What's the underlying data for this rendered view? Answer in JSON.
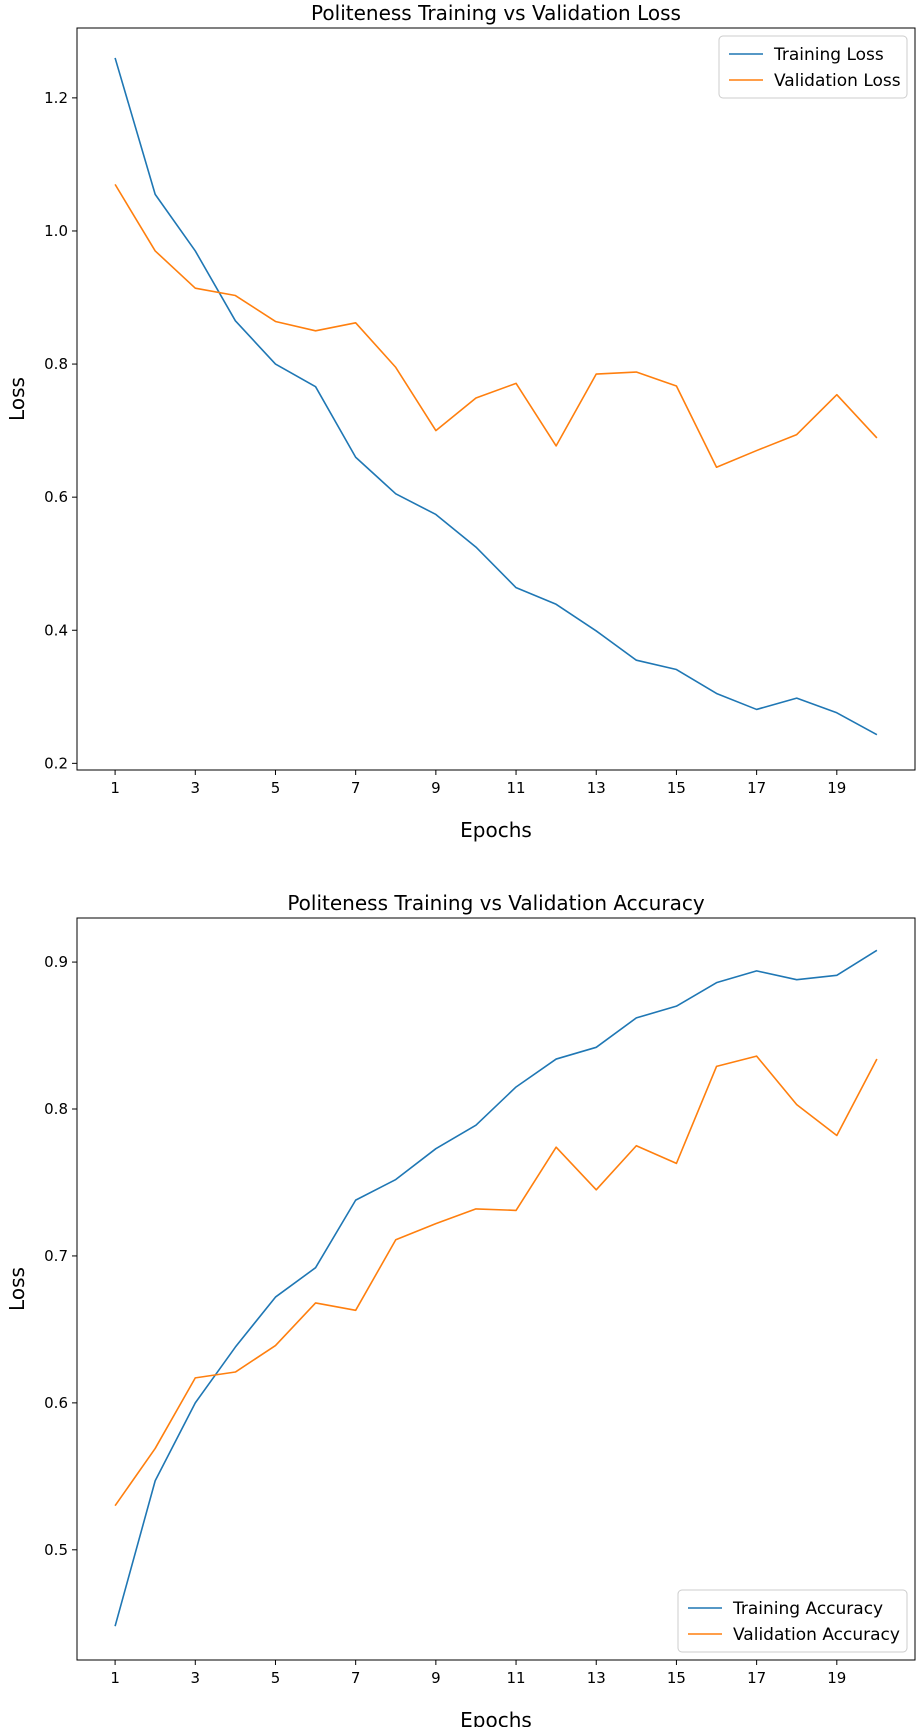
{
  "chart_data": [
    {
      "type": "line",
      "title": "Politeness Training vs Validation Loss",
      "xlabel": "Epochs",
      "ylabel": "Loss",
      "x": [
        1,
        2,
        3,
        4,
        5,
        6,
        7,
        8,
        9,
        10,
        11,
        12,
        13,
        14,
        15,
        16,
        17,
        18,
        19,
        20
      ],
      "xticks": [
        1,
        3,
        5,
        7,
        9,
        11,
        13,
        15,
        17,
        19
      ],
      "yticks": [
        0.2,
        0.4,
        0.6,
        0.8,
        1.0,
        1.2
      ],
      "ytick_labels": [
        "0.2",
        "0.4",
        "0.6",
        "0.8",
        "1.0",
        "1.2"
      ],
      "xlim": [
        0.05,
        20.95
      ],
      "ylim": [
        0.19,
        1.305
      ],
      "legend": "top-right",
      "grid": false,
      "series": [
        {
          "name": "Training Loss",
          "color": "#1f77b4",
          "values": [
            1.26,
            1.055,
            0.97,
            0.865,
            0.8,
            0.766,
            0.66,
            0.605,
            0.574,
            0.525,
            0.464,
            0.439,
            0.399,
            0.355,
            0.341,
            0.305,
            0.281,
            0.298,
            0.276,
            0.243
          ]
        },
        {
          "name": "Validation Loss",
          "color": "#ff7f0e",
          "values": [
            1.07,
            0.97,
            0.914,
            0.903,
            0.864,
            0.85,
            0.862,
            0.795,
            0.7,
            0.749,
            0.771,
            0.677,
            0.785,
            0.788,
            0.767,
            0.645,
            0.67,
            0.694,
            0.754,
            0.689
          ]
        }
      ]
    },
    {
      "type": "line",
      "title": "Politeness Training vs Validation Accuracy",
      "xlabel": "Epochs",
      "ylabel": "Loss",
      "x": [
        1,
        2,
        3,
        4,
        5,
        6,
        7,
        8,
        9,
        10,
        11,
        12,
        13,
        14,
        15,
        16,
        17,
        18,
        19,
        20
      ],
      "xticks": [
        1,
        3,
        5,
        7,
        9,
        11,
        13,
        15,
        17,
        19
      ],
      "yticks": [
        0.5,
        0.6,
        0.7,
        0.8,
        0.9
      ],
      "ytick_labels": [
        "0.5",
        "0.6",
        "0.7",
        "0.8",
        "0.9"
      ],
      "xlim": [
        0.05,
        20.95
      ],
      "ylim": [
        0.425,
        0.93
      ],
      "legend": "bottom-right",
      "grid": false,
      "series": [
        {
          "name": "Training Accuracy",
          "color": "#1f77b4",
          "values": [
            0.448,
            0.547,
            0.6,
            0.638,
            0.672,
            0.692,
            0.738,
            0.752,
            0.773,
            0.789,
            0.815,
            0.834,
            0.842,
            0.862,
            0.87,
            0.886,
            0.894,
            0.888,
            0.891,
            0.908
          ]
        },
        {
          "name": "Validation Accuracy",
          "color": "#ff7f0e",
          "values": [
            0.53,
            0.569,
            0.617,
            0.621,
            0.639,
            0.668,
            0.663,
            0.711,
            0.722,
            0.732,
            0.731,
            0.774,
            0.745,
            0.775,
            0.763,
            0.829,
            0.836,
            0.803,
            0.782,
            0.834
          ]
        }
      ]
    }
  ]
}
